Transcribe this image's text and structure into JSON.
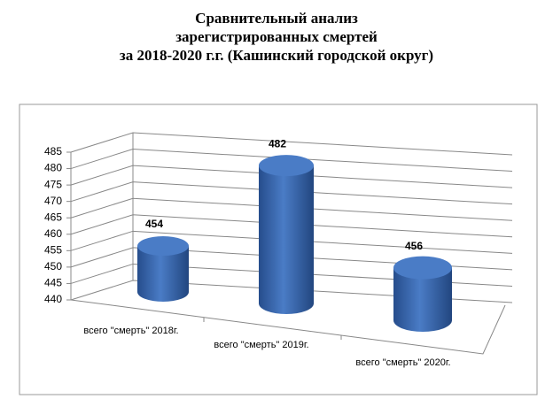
{
  "chart_data": {
    "type": "bar3d",
    "title": [
      "Сравнительный анализ",
      "зарегистрированных смертей",
      "за 2018-2020 г.г. (Кашинский городской округ)"
    ],
    "categories": [
      "всего \"смерть\" 2018г.",
      "всего \"смерть\" 2019г.",
      "всего \"смерть\" 2020г."
    ],
    "values": [
      454,
      482,
      456
    ],
    "color": "#4a7cc6",
    "ylim": [
      440,
      485
    ],
    "yticks": [
      440,
      445,
      450,
      455,
      460,
      465,
      470,
      475,
      480,
      485
    ],
    "grid": true
  }
}
